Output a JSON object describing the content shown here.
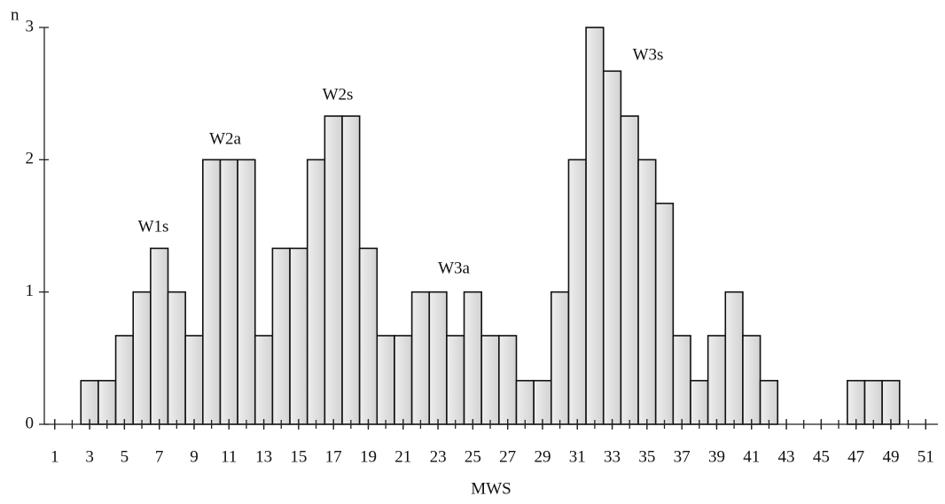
{
  "chart_data": {
    "type": "bar",
    "x": [
      1,
      2,
      3,
      4,
      5,
      6,
      7,
      8,
      9,
      10,
      11,
      12,
      13,
      14,
      15,
      16,
      17,
      18,
      19,
      20,
      21,
      22,
      23,
      24,
      25,
      26,
      27,
      28,
      29,
      30,
      31,
      32,
      33,
      34,
      35,
      36,
      37,
      38,
      39,
      40,
      41,
      42,
      43,
      44,
      45,
      46,
      47,
      48,
      49,
      50,
      51
    ],
    "values": [
      0,
      0,
      0.33,
      0.33,
      0.67,
      1,
      1.33,
      1,
      0.67,
      2,
      2,
      2,
      0.67,
      1.33,
      1.33,
      2,
      2.33,
      2.33,
      1.33,
      0.67,
      0.67,
      1,
      1,
      0.67,
      1,
      0.67,
      0.67,
      0.33,
      0.33,
      1,
      2,
      3,
      2.67,
      2.33,
      2,
      1.67,
      0.67,
      0.33,
      0.67,
      1,
      0.67,
      0.33,
      0,
      0,
      0,
      0,
      0.33,
      0.33,
      0.33,
      0,
      0
    ],
    "color": "#d2d2d2",
    "xlabel": "MWS",
    "ylabel": "n",
    "xlim": [
      0.4,
      51.7
    ],
    "xticks": [
      1,
      3,
      5,
      7,
      9,
      11,
      13,
      15,
      17,
      19,
      21,
      23,
      25,
      27,
      29,
      31,
      33,
      35,
      37,
      39,
      41,
      43,
      45,
      47,
      49,
      51
    ],
    "ylim": [
      0,
      3
    ],
    "yticks": [
      0,
      1,
      2,
      3
    ],
    "annotations": [
      "W1s",
      "W2a",
      "W2s",
      "W3a",
      "W3s"
    ]
  }
}
